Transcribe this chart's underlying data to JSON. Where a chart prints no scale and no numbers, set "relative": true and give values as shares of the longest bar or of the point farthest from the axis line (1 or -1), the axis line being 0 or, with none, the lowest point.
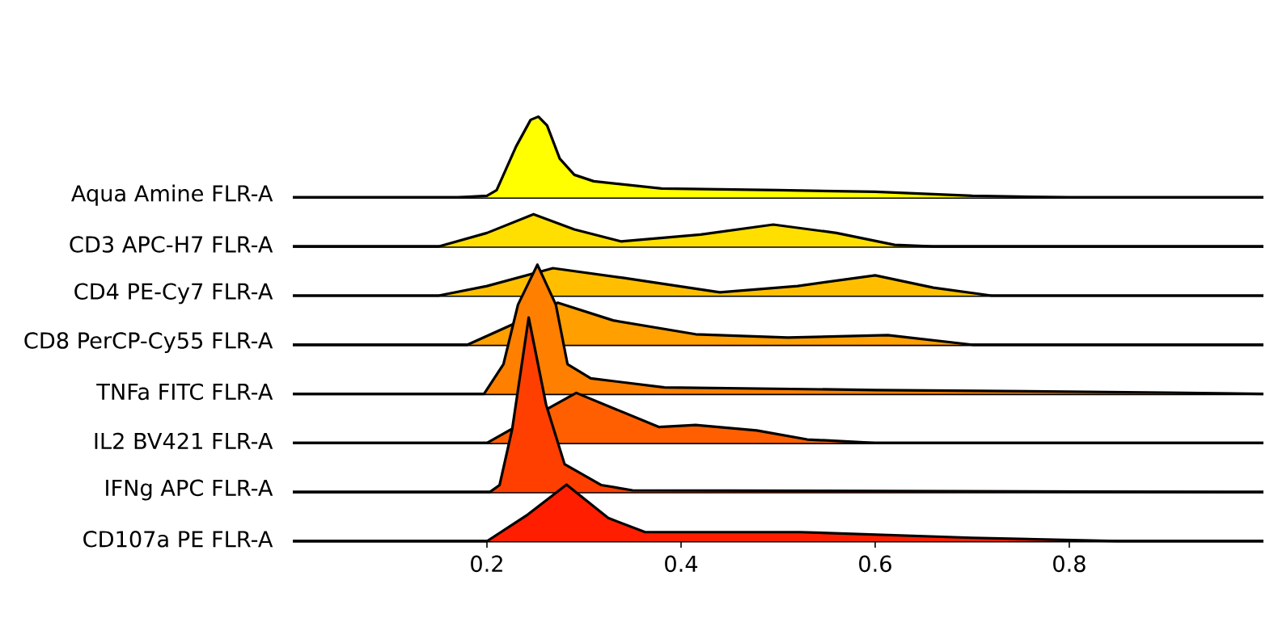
{
  "chart_data": [
    {
      "type": "area",
      "relative": true,
      "tick_labels": false,
      "xlim": [
        0,
        1
      ],
      "xticks": [
        0.2,
        0.4,
        0.6,
        0.8
      ],
      "series": [
        {
          "name": "Aqua Amine FLR-A",
          "color": "#ffff00",
          "x": [
            0,
            0.17,
            0.2,
            0.21,
            0.23,
            0.245,
            0.253,
            0.262,
            0.275,
            0.29,
            0.31,
            0.38,
            0.5,
            0.6,
            0.7,
            0.8,
            1
          ],
          "values": [
            0,
            0,
            0.02,
            0.09,
            0.63,
            0.96,
            1,
            0.89,
            0.48,
            0.28,
            0.2,
            0.11,
            0.09,
            0.07,
            0.02,
            0,
            0
          ]
        }
      ]
    },
    {
      "type": "area",
      "relative": true,
      "tick_labels": false,
      "xlim": [
        0,
        1
      ],
      "xticks": [
        0.2,
        0.4,
        0.6,
        0.8
      ],
      "series": [
        {
          "name": "CD3 APC-H7 FLR-A",
          "color": "#ffdf00",
          "x": [
            0,
            0.15,
            0.2,
            0.248,
            0.29,
            0.338,
            0.42,
            0.495,
            0.56,
            0.62,
            0.66,
            1
          ],
          "values": [
            0,
            0,
            0.42,
            1,
            0.53,
            0.16,
            0.37,
            0.68,
            0.42,
            0.05,
            0,
            0
          ]
        }
      ]
    },
    {
      "type": "area",
      "relative": true,
      "tick_labels": false,
      "xlim": [
        0,
        1
      ],
      "xticks": [
        0.2,
        0.4,
        0.6,
        0.8
      ],
      "series": [
        {
          "name": "CD4 PE-Cy7 FLR-A",
          "color": "#ffbf00",
          "x": [
            0,
            0.15,
            0.2,
            0.268,
            0.34,
            0.44,
            0.52,
            0.6,
            0.66,
            0.72,
            1
          ],
          "values": [
            0,
            0,
            0.35,
            1,
            0.65,
            0.12,
            0.35,
            0.74,
            0.29,
            0,
            0
          ]
        }
      ]
    },
    {
      "type": "area",
      "relative": true,
      "tick_labels": false,
      "xlim": [
        0,
        1
      ],
      "xticks": [
        0.2,
        0.4,
        0.6,
        0.8
      ],
      "series": [
        {
          "name": "CD8 PerCP-Cy55 FLR-A",
          "color": "#ff9f00",
          "x": [
            0,
            0.18,
            0.228,
            0.273,
            0.33,
            0.415,
            0.51,
            0.613,
            0.7,
            1
          ],
          "values": [
            0,
            0,
            0.5,
            1,
            0.58,
            0.25,
            0.17,
            0.23,
            0,
            0
          ]
        }
      ]
    },
    {
      "type": "area",
      "relative": true,
      "tick_labels": false,
      "xlim": [
        0,
        1
      ],
      "xticks": [
        0.2,
        0.4,
        0.6,
        0.8
      ],
      "series": [
        {
          "name": "TNFa FITC FLR-A",
          "color": "#ff7f00",
          "x": [
            0,
            0.197,
            0.217,
            0.232,
            0.252,
            0.271,
            0.283,
            0.307,
            0.383,
            0.6,
            0.9,
            1
          ],
          "values": [
            0,
            0,
            0.23,
            0.69,
            1,
            0.69,
            0.23,
            0.12,
            0.05,
            0.03,
            0.01,
            0
          ]
        }
      ]
    },
    {
      "type": "area",
      "relative": true,
      "tick_labels": false,
      "xlim": [
        0,
        1
      ],
      "xticks": [
        0.2,
        0.4,
        0.6,
        0.8
      ],
      "series": [
        {
          "name": "IL2 BV421 FLR-A",
          "color": "#ff5f00",
          "x": [
            0,
            0.2,
            0.229,
            0.265,
            0.292,
            0.377,
            0.415,
            0.478,
            0.53,
            0.6,
            1
          ],
          "values": [
            0,
            0,
            null,
            0.71,
            1,
            0.32,
            0.36,
            0.25,
            0.07,
            0,
            0
          ]
        }
      ]
    },
    {
      "type": "area",
      "relative": true,
      "tick_labels": false,
      "xlim": [
        0,
        1
      ],
      "xticks": [
        0.2,
        0.4,
        0.6,
        0.8
      ],
      "series": [
        {
          "name": "IFNg APC FLR-A",
          "color": "#ff3f00",
          "x": [
            0,
            0.203,
            0.213,
            0.226,
            0.243,
            0.261,
            0.28,
            0.318,
            0.35,
            1
          ],
          "values": [
            0,
            0,
            0.04,
            0.36,
            1.0,
            0.5,
            0.16,
            0.04,
            0.01,
            0
          ]
        }
      ]
    },
    {
      "type": "area",
      "relative": true,
      "tick_labels": "x",
      "xlim": [
        0,
        1
      ],
      "xticks": [
        0.2,
        0.4,
        0.6,
        0.8
      ],
      "series": [
        {
          "name": "CD107a PE FLR-A",
          "color": "#ff1f00",
          "x": [
            0,
            0.2,
            0.242,
            0.282,
            0.325,
            0.363,
            0.523,
            0.7,
            0.85,
            1
          ],
          "values": [
            0,
            0,
            0.47,
            1,
            0.41,
            0.16,
            0.16,
            0.06,
            0,
            0
          ]
        }
      ]
    }
  ]
}
